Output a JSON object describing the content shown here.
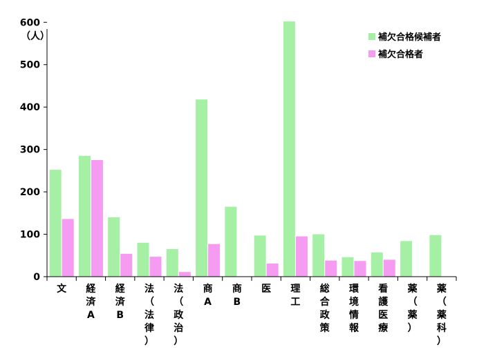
{
  "chart_data": {
    "type": "bar",
    "unit_label": "（人）",
    "categories": [
      "文",
      "経済A",
      "経済B",
      "法（法律）",
      "法（政治）",
      "商A",
      "商B",
      "医",
      "理工",
      "総合政策",
      "環境情報",
      "看護医療",
      "薬（薬）",
      "薬（薬科）"
    ],
    "series": [
      {
        "name": "補欠合格候補者",
        "color": "#a6f0a6",
        "values": [
          252,
          285,
          140,
          80,
          65,
          418,
          165,
          97,
          602,
          100,
          46,
          57,
          84,
          98
        ]
      },
      {
        "name": "補欠合格者",
        "color": "#f59cf2",
        "values": [
          136,
          275,
          54,
          47,
          11,
          77,
          null,
          31,
          95,
          38,
          37,
          40,
          null,
          null
        ]
      }
    ],
    "yticks": [
      0,
      100,
      200,
      300,
      400,
      500,
      600
    ],
    "ylim": [
      0,
      620
    ],
    "grid": false,
    "legend_position": "top-right"
  }
}
